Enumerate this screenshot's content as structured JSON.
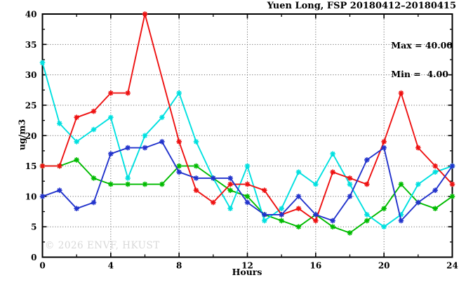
{
  "watermark": {
    "text": "© 2026 ENVF, HKUST",
    "color": "#d8d8d8"
  },
  "axis_color": "#000000",
  "grid_color": "#555555",
  "chart_data": {
    "type": "line",
    "title": "Yuen Long, FSP 20180412–20180415",
    "xlabel": "Hours",
    "ylabel": "ug/m3",
    "xlim": [
      0,
      24
    ],
    "ylim": [
      0,
      40
    ],
    "xticks_major": [
      0,
      4,
      8,
      12,
      16,
      20,
      24
    ],
    "xtick_minor_step": 2,
    "yticks_major": [
      0,
      5,
      10,
      15,
      20,
      25,
      30,
      35,
      40
    ],
    "ytick_minor_step": 2.5,
    "grid": true,
    "legend": {
      "position": "top-right",
      "max_label": "Max = 40.00",
      "min_label": "Min =  4.00"
    },
    "x": [
      0,
      1,
      2,
      3,
      4,
      5,
      6,
      7,
      8,
      9,
      10,
      11,
      12,
      13,
      14,
      15,
      16,
      17,
      18,
      19,
      20,
      21,
      22,
      23,
      24
    ],
    "series": [
      {
        "name": "green",
        "color": "#00bb00",
        "values": [
          15,
          15,
          16,
          13,
          12,
          12,
          12,
          12,
          15,
          15,
          13,
          11,
          10,
          7,
          6,
          5,
          7,
          5,
          4,
          6,
          8,
          12,
          9,
          8,
          10
        ]
      },
      {
        "name": "cyan",
        "color": "#00e0e0",
        "values": [
          32,
          22,
          19,
          21,
          23,
          13,
          20,
          23,
          27,
          19,
          13,
          8,
          15,
          6,
          8,
          14,
          12,
          17,
          12,
          7,
          5,
          7,
          12,
          14,
          15
        ]
      },
      {
        "name": "red",
        "color": "#ee1111",
        "values": [
          15,
          15,
          23,
          24,
          27,
          27,
          40,
          null,
          19,
          11,
          9,
          12,
          12,
          11,
          7,
          8,
          6,
          14,
          13,
          12,
          19,
          27,
          18,
          15,
          12
        ]
      },
      {
        "name": "blue",
        "color": "#2233cc",
        "values": [
          10,
          11,
          8,
          9,
          17,
          18,
          18,
          19,
          14,
          13,
          13,
          13,
          9,
          7,
          7,
          10,
          7,
          6,
          10,
          16,
          18,
          6,
          9,
          11,
          15
        ]
      }
    ]
  }
}
